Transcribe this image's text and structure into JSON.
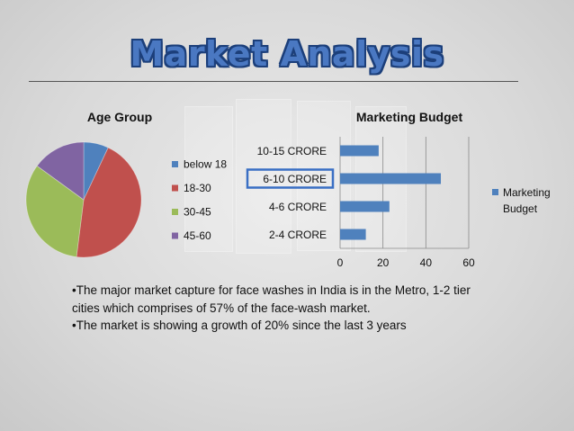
{
  "slide": {
    "title": "Market Analysis",
    "bullets": [
      "•The major market capture for face washes in India is in the Metro, 1-2 tier cities which comprises of 57% of the face-wash market.",
      "•The market is showing a growth of 20% since the last 3 years"
    ]
  },
  "chart_data": [
    {
      "type": "pie",
      "title": "Age Group",
      "legend_position": "right",
      "categories": [
        "below 18",
        "18-30",
        "30-45",
        "45-60"
      ],
      "values": [
        7,
        45,
        33,
        15
      ],
      "colors": [
        "#4f81bd",
        "#c0504d",
        "#9bbb59",
        "#8064a2"
      ]
    },
    {
      "type": "bar",
      "orientation": "horizontal",
      "title": "Marketing Budget",
      "legend_position": "right",
      "categories": [
        "2-4 CRORE",
        "4-6 CRORE",
        "6-10 CRORE",
        "10-15 CRORE"
      ],
      "highlighted_category": "6-10 CRORE",
      "series": [
        {
          "name": "Marketing Budget",
          "values": [
            12,
            23,
            47,
            18
          ]
        }
      ],
      "xlim": [
        0,
        60
      ],
      "xticks": [
        0,
        20,
        40,
        60
      ],
      "grid": true,
      "colors": [
        "#4f81bd"
      ]
    }
  ]
}
